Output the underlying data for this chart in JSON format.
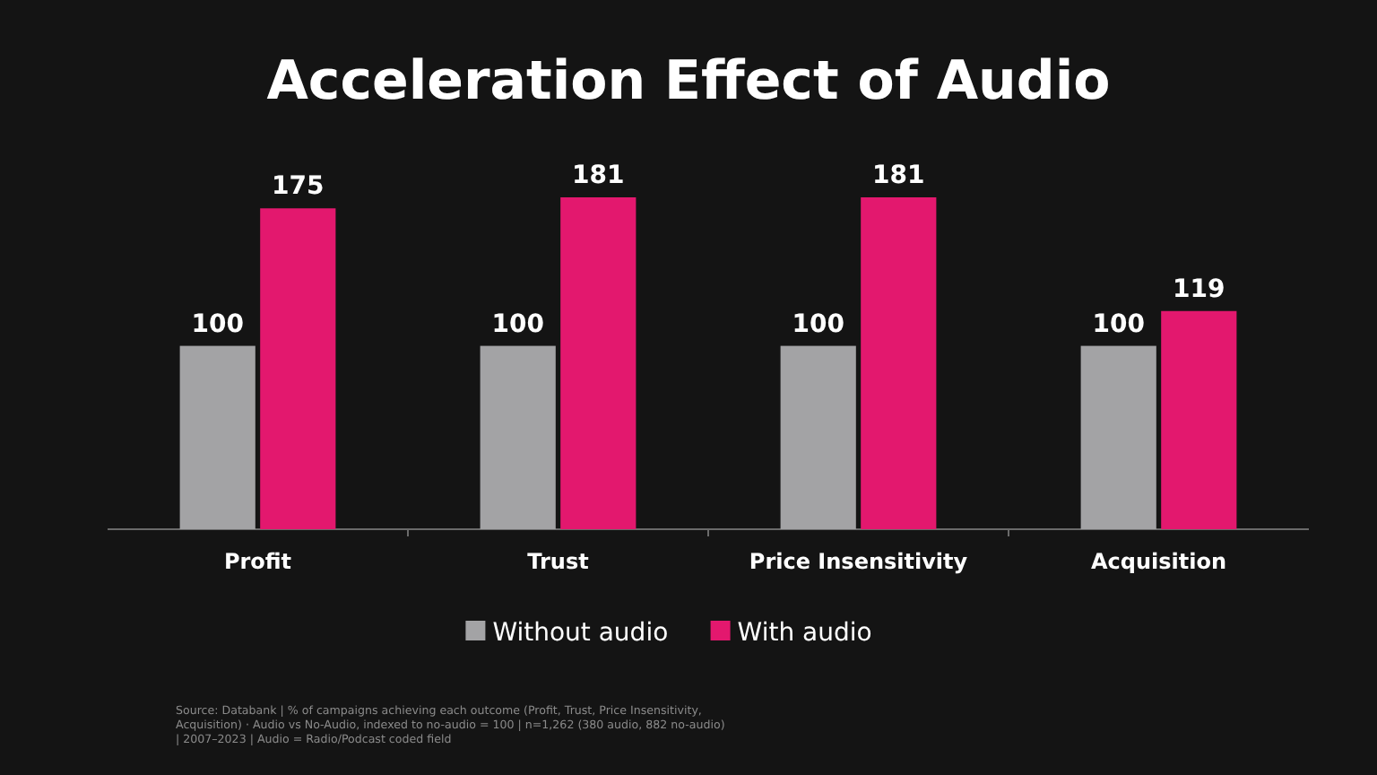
{
  "chart_data": {
    "type": "bar",
    "title": "Acceleration Effect of Audio",
    "categories": [
      "Profit",
      "Trust",
      "Price Insensitivity",
      "Acquisition"
    ],
    "series": [
      {
        "name": "Without audio",
        "color": "#a3a3a5",
        "values": [
          100,
          100,
          100,
          100
        ]
      },
      {
        "name": "With audio",
        "color": "#e3186e",
        "values": [
          175,
          181,
          181,
          119
        ]
      }
    ],
    "data_labels": true,
    "legend": "bottom",
    "annotations": [
      "Source: Databank | % of campaigns achieving each outcome (Profit, Trust, Price Insensitivity, Acquisition) · Audio vs No-Audio, indexed to no-audio = 100 | n=1,262 (380 audio, 882 no-audio) | 2007–2023 | Audio = Radio/Podcast coded field"
    ]
  }
}
